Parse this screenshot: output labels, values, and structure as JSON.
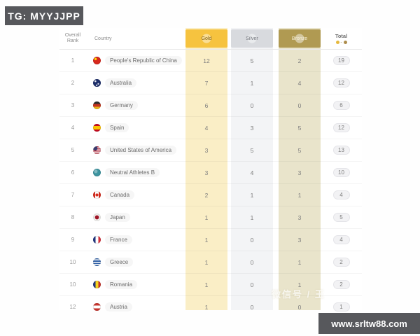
{
  "overlays": {
    "tg_badge": "TG: MYYJJPP",
    "site_watermark": "www.srltw88.com",
    "faint_watermark": "微信号 / 王"
  },
  "medal_table": {
    "headers": {
      "rank_line1": "Overall",
      "rank_line2": "Rank",
      "country": "Country",
      "gold": "Gold",
      "silver": "Silver",
      "bronze": "Bronze",
      "total": "Total",
      "total_range_separator": "-"
    },
    "colors": {
      "gold_header": "#f6c33f",
      "gold_column": "#faeec6",
      "silver_header": "#d8dade",
      "silver_column": "#f3f4f6",
      "bronze_header": "#b09a52",
      "bronze_column": "#e9e4cb",
      "badge_background": "#57585c"
    },
    "rows": [
      {
        "rank": "1",
        "country": "People's Republic of China",
        "flag": "cn",
        "gold": "12",
        "silver": "5",
        "bronze": "2",
        "total": "19"
      },
      {
        "rank": "2",
        "country": "Australia",
        "flag": "au",
        "gold": "7",
        "silver": "1",
        "bronze": "4",
        "total": "12"
      },
      {
        "rank": "3",
        "country": "Germany",
        "flag": "de",
        "gold": "6",
        "silver": "0",
        "bronze": "0",
        "total": "6"
      },
      {
        "rank": "4",
        "country": "Spain",
        "flag": "es",
        "gold": "4",
        "silver": "3",
        "bronze": "5",
        "total": "12"
      },
      {
        "rank": "5",
        "country": "United States of America",
        "flag": "us",
        "gold": "3",
        "silver": "5",
        "bronze": "5",
        "total": "13"
      },
      {
        "rank": "6",
        "country": "Neutral Athletes B",
        "flag": "nab",
        "gold": "3",
        "silver": "4",
        "bronze": "3",
        "total": "10"
      },
      {
        "rank": "7",
        "country": "Canada",
        "flag": "ca",
        "gold": "2",
        "silver": "1",
        "bronze": "1",
        "total": "4"
      },
      {
        "rank": "8",
        "country": "Japan",
        "flag": "jp",
        "gold": "1",
        "silver": "1",
        "bronze": "3",
        "total": "5"
      },
      {
        "rank": "9",
        "country": "France",
        "flag": "fr",
        "gold": "1",
        "silver": "0",
        "bronze": "3",
        "total": "4"
      },
      {
        "rank": "10",
        "country": "Greece",
        "flag": "gr",
        "gold": "1",
        "silver": "0",
        "bronze": "1",
        "total": "2"
      },
      {
        "rank": "10",
        "country": "Romania",
        "flag": "ro",
        "gold": "1",
        "silver": "0",
        "bronze": "1",
        "total": "2"
      },
      {
        "rank": "12",
        "country": "Austria",
        "flag": "at",
        "gold": "1",
        "silver": "0",
        "bronze": "0",
        "total": "1"
      }
    ]
  }
}
